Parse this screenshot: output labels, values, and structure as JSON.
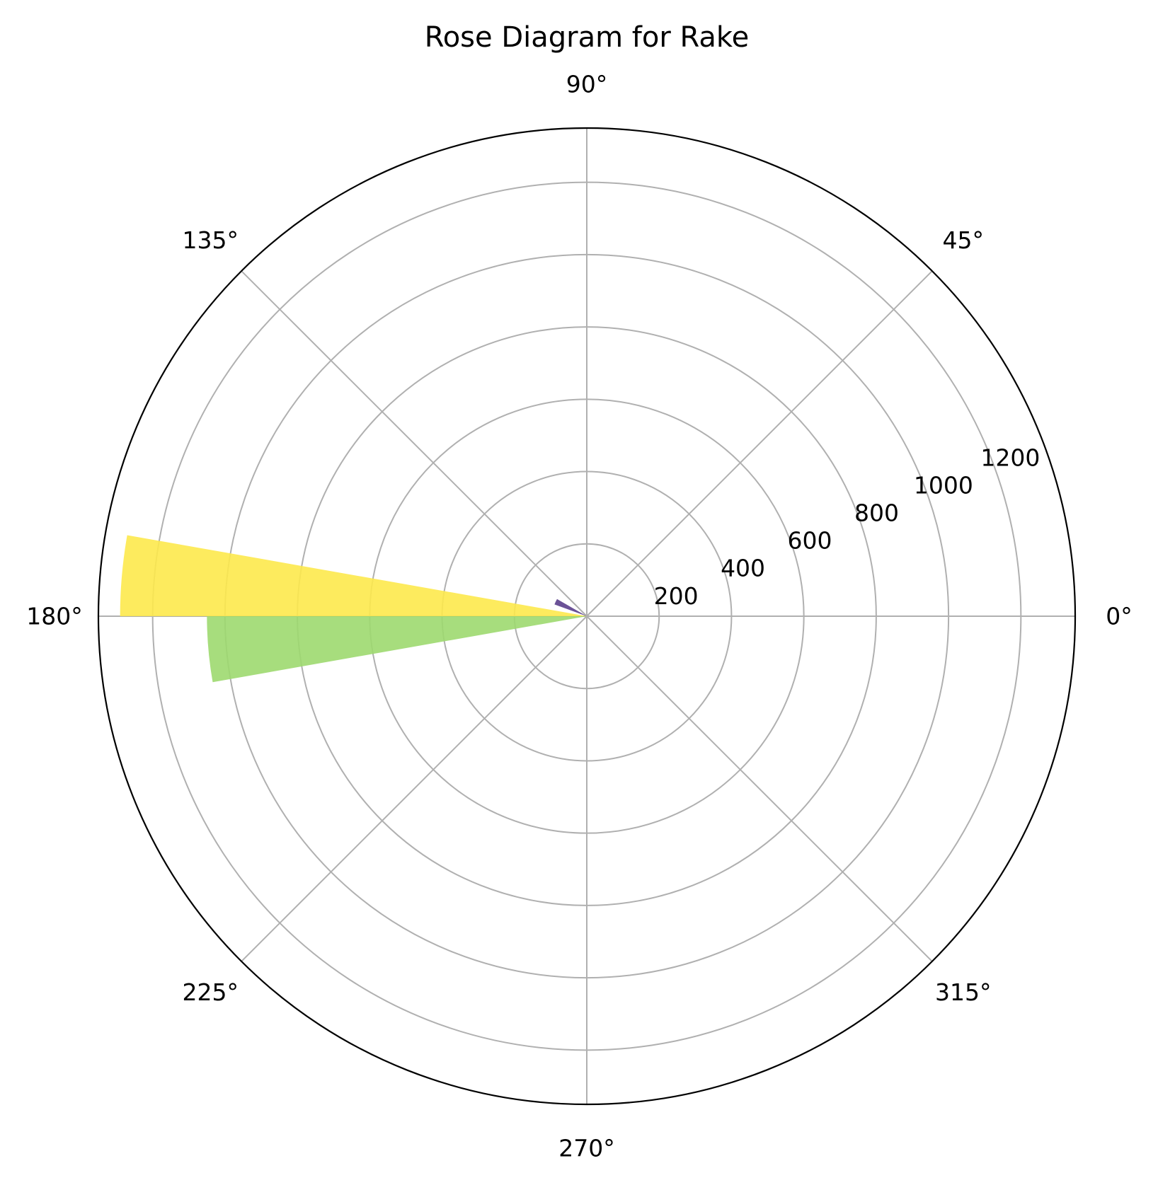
{
  "chart_data": {
    "type": "bar",
    "subtype": "polar-rose",
    "title": "Rose Diagram for Rake",
    "theta_direction": "counterclockwise",
    "theta_zero_location": "east",
    "theta_ticks": [
      {
        "deg": 0,
        "label": "0°"
      },
      {
        "deg": 45,
        "label": "45°"
      },
      {
        "deg": 90,
        "label": "90°"
      },
      {
        "deg": 135,
        "label": "135°"
      },
      {
        "deg": 180,
        "label": "180°"
      },
      {
        "deg": 225,
        "label": "225°"
      },
      {
        "deg": 270,
        "label": "270°"
      },
      {
        "deg": 315,
        "label": "315°"
      }
    ],
    "r_ticks": [
      200,
      400,
      600,
      800,
      1000,
      1200
    ],
    "r_tick_labels": [
      "200",
      "400",
      "600",
      "800",
      "1000",
      "1200"
    ],
    "r_label_angle_deg": 22.5,
    "rlim": [
      0,
      1350
    ],
    "grid": true,
    "bins": [
      {
        "start_deg": 150,
        "end_deg": 160,
        "value": 95,
        "color": "#5b3f8c"
      },
      {
        "start_deg": 170,
        "end_deg": 180,
        "value": 1290,
        "color": "#fde94c"
      },
      {
        "start_deg": 180,
        "end_deg": 190,
        "value": 1050,
        "color": "#9dd96f"
      }
    ]
  }
}
